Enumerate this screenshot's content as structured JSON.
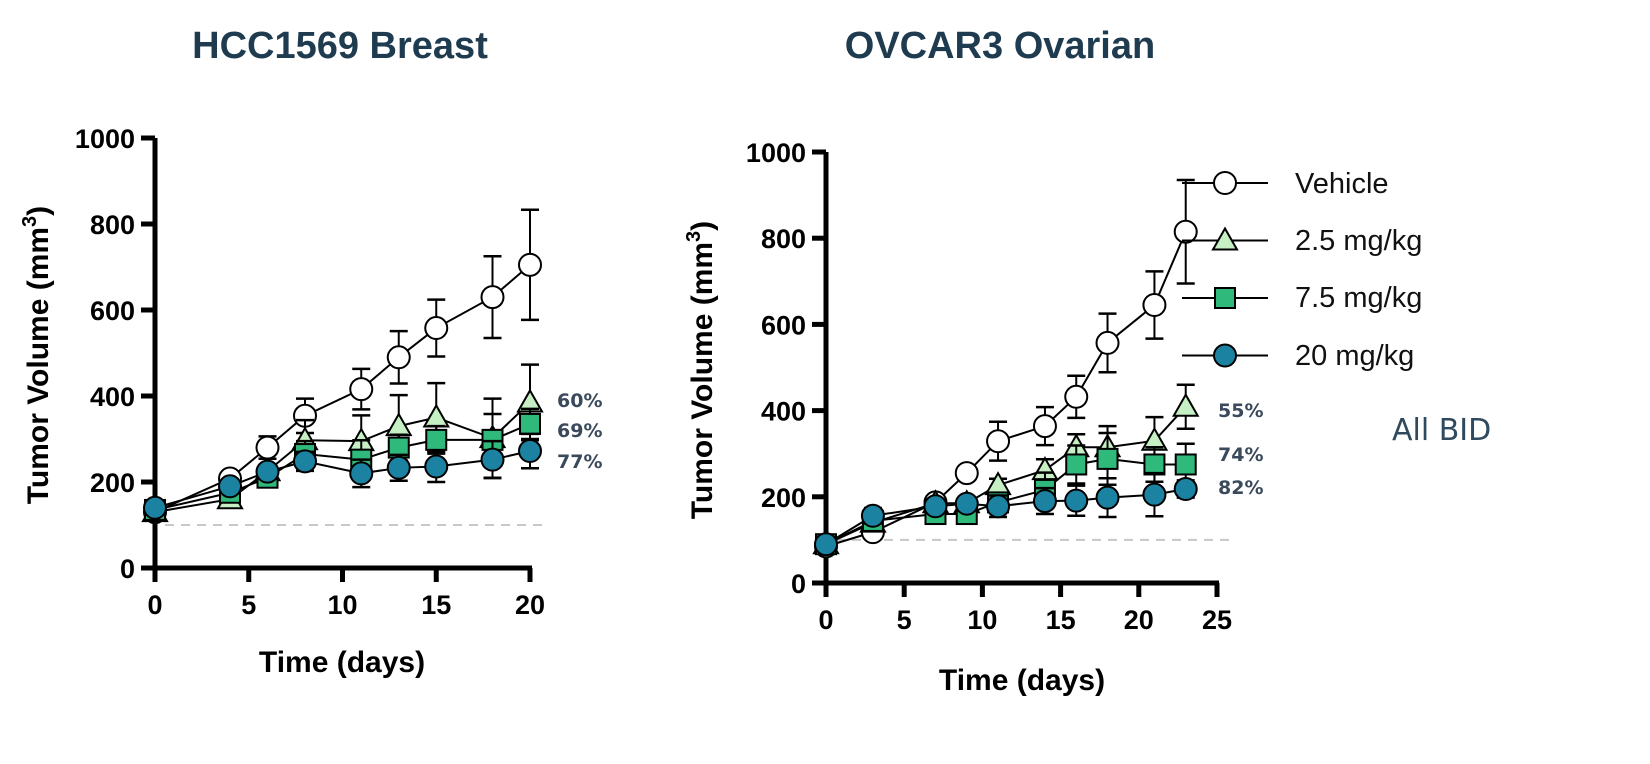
{
  "chart_data": [
    {
      "type": "line",
      "title": "HCC1569 Breast",
      "xlabel": "Time (days)",
      "ylabel": "Tumor Volume (mm3)",
      "ylabel_main": "Tumor Volume (mm",
      "ylabel_sup": "3",
      "ylabel_close": ")",
      "xlim": [
        0,
        20
      ],
      "ylim": [
        0,
        1000
      ],
      "xticks": [
        0,
        5,
        10,
        15,
        20
      ],
      "yticks": [
        0,
        200,
        400,
        600,
        800,
        1000
      ],
      "baseline": 100,
      "x": [
        0,
        4,
        6,
        8,
        11,
        13,
        15,
        18,
        20
      ],
      "series": [
        {
          "name": "Vehicle",
          "values": [
            130,
            208,
            280,
            354,
            416,
            490,
            558,
            630,
            705
          ],
          "sem": [
            8,
            10,
            26,
            40,
            47,
            61,
            66,
            95,
            128
          ]
        },
        {
          "name": "2.5 mg/kg",
          "values": [
            130,
            160,
            225,
            297,
            295,
            330,
            350,
            302,
            385
          ],
          "sem": [
            8,
            8,
            15,
            47,
            60,
            72,
            80,
            92,
            88
          ]
        },
        {
          "name": "7.5 mg/kg",
          "values": [
            135,
            175,
            210,
            265,
            252,
            280,
            298,
            298,
            335
          ],
          "sem": [
            8,
            10,
            15,
            30,
            45,
            30,
            32,
            60,
            35
          ]
        },
        {
          "name": "20 mg/kg",
          "values": [
            140,
            190,
            224,
            248,
            220,
            233,
            236,
            252,
            272
          ],
          "sem": [
            8,
            10,
            12,
            22,
            32,
            30,
            36,
            43,
            40
          ]
        }
      ],
      "annotations": [
        "60%",
        "69%",
        "77%"
      ]
    },
    {
      "type": "line",
      "title": "OVCAR3 Ovarian",
      "xlabel": "Time (days)",
      "ylabel": "Tumor Volume (mm3)",
      "ylabel_main": "Tumor Volume (mm",
      "ylabel_sup": "3",
      "ylabel_close": ")",
      "xlim": [
        0,
        25
      ],
      "ylim": [
        0,
        1000
      ],
      "xticks": [
        0,
        5,
        10,
        15,
        20,
        25
      ],
      "yticks": [
        0,
        200,
        400,
        600,
        800,
        1000
      ],
      "baseline": 100,
      "x": [
        0,
        3,
        7,
        9,
        11,
        14,
        16,
        18,
        21,
        23
      ],
      "series": [
        {
          "name": "Vehicle",
          "values": [
            85,
            118,
            187,
            255,
            329,
            364,
            432,
            557,
            645,
            815
          ],
          "sem": [
            8,
            8,
            10,
            12,
            45,
            44,
            49,
            68,
            78,
            120
          ]
        },
        {
          "name": "2.5 mg/kg",
          "values": [
            90,
            140,
            185,
            185,
            227,
            262,
            315,
            315,
            330,
            409
          ],
          "sem": [
            8,
            10,
            10,
            10,
            15,
            25,
            30,
            49,
            55,
            51
          ]
        },
        {
          "name": "7.5 mg/kg",
          "values": [
            90,
            144,
            160,
            160,
            187,
            216,
            275,
            288,
            275,
            275
          ],
          "sem": [
            8,
            10,
            10,
            10,
            15,
            40,
            44,
            60,
            40,
            48
          ]
        },
        {
          "name": "20 mg/kg",
          "values": [
            90,
            156,
            178,
            184,
            178,
            190,
            191,
            198,
            205,
            218
          ],
          "sem": [
            8,
            18,
            10,
            10,
            25,
            30,
            35,
            45,
            50,
            20
          ]
        }
      ],
      "annotations": [
        "55%",
        "74%",
        "82%"
      ]
    }
  ],
  "legend": {
    "items": [
      "Vehicle",
      "2.5 mg/kg",
      "7.5 mg/kg",
      "20 mg/kg"
    ],
    "note": "All BID",
    "placement": "right"
  },
  "colors": {
    "Vehicle": "#ffffff",
    "2.5 mg/kg": "#c6efc4",
    "7.5 mg/kg": "#2fba7c",
    "20 mg/kg": "#1c82a2",
    "baseline": "#c8c8c8"
  },
  "markers": [
    "circle",
    "triangle",
    "square",
    "circle"
  ]
}
